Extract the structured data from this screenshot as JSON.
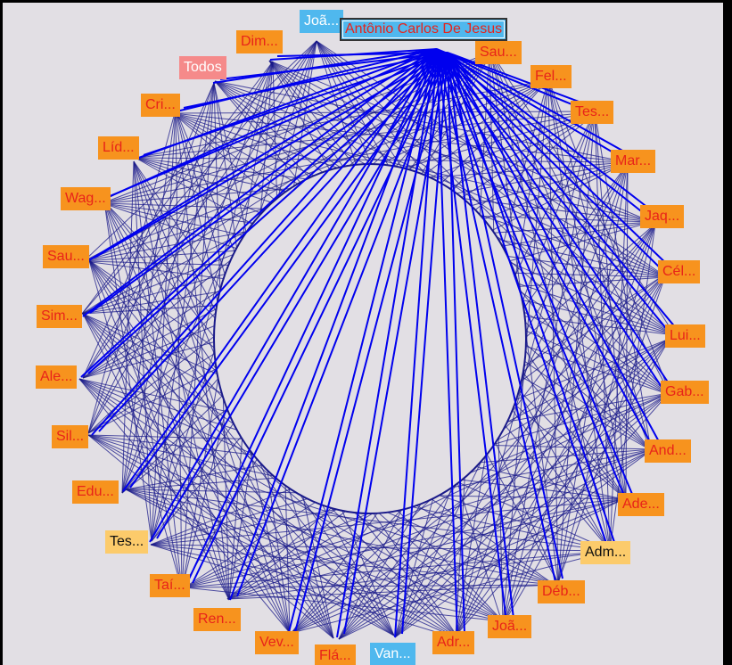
{
  "graph": {
    "center_node": "Todos",
    "tooltip": "Antônio Carlos De Jesus",
    "nodes": [
      {
        "label": "Joã...",
        "kind": "blue"
      },
      {
        "label": "Dim...",
        "kind": "orange"
      },
      {
        "label": "Todos",
        "kind": "pink"
      },
      {
        "label": "Cri...",
        "kind": "orange"
      },
      {
        "label": "Líd...",
        "kind": "orange"
      },
      {
        "label": "Wag...",
        "kind": "orange"
      },
      {
        "label": "Sau...",
        "kind": "orange"
      },
      {
        "label": "Sim...",
        "kind": "orange"
      },
      {
        "label": "Ale...",
        "kind": "orange"
      },
      {
        "label": "Sil...",
        "kind": "orange"
      },
      {
        "label": "Edu...",
        "kind": "orange"
      },
      {
        "label": "Tes...",
        "kind": "pale"
      },
      {
        "label": "Taí...",
        "kind": "orange"
      },
      {
        "label": "Ren...",
        "kind": "orange"
      },
      {
        "label": "Vev...",
        "kind": "orange"
      },
      {
        "label": "Flá...",
        "kind": "orange"
      },
      {
        "label": "Van...",
        "kind": "blue"
      },
      {
        "label": "Adr...",
        "kind": "orange"
      },
      {
        "label": "Joã...",
        "kind": "orange"
      },
      {
        "label": "Déb...",
        "kind": "orange"
      },
      {
        "label": "Adm...",
        "kind": "pale"
      },
      {
        "label": "Ade...",
        "kind": "orange"
      },
      {
        "label": "And...",
        "kind": "orange"
      },
      {
        "label": "Gab...",
        "kind": "orange"
      },
      {
        "label": "Lui...",
        "kind": "orange"
      },
      {
        "label": "Cél...",
        "kind": "orange"
      },
      {
        "label": "Jaq...",
        "kind": "orange"
      },
      {
        "label": "Mar...",
        "kind": "orange"
      },
      {
        "label": "Tes...",
        "kind": "orange"
      },
      {
        "label": "Fel...",
        "kind": "orange"
      },
      {
        "label": "Sau...",
        "kind": "orange"
      }
    ],
    "colors": {
      "background": "#e2dfe4",
      "edge_dense": "#1a1a8a",
      "edge_highlight": "#0000ee",
      "node_orange": "#f7931e",
      "node_text_red": "#e8231a",
      "node_blue": "#4fb8ee",
      "node_pink": "#f58a8a",
      "node_pale": "#fccb6b"
    }
  }
}
